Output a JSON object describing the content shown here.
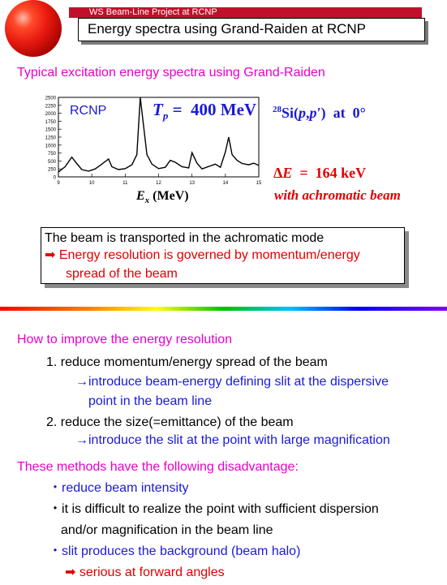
{
  "header": {
    "project_label": "WS Beam-Line Project at RCNP",
    "title": "Energy spectra using Grand-Raiden at RCNP"
  },
  "spectrum": {
    "heading": "Typical excitation energy spectra using Grand-Raiden",
    "lab_label": "RCNP",
    "beam_energy": "Tp = 400 MeV",
    "reaction": "28Si(p,p′) at 0°",
    "resolution": "ΔE = 164 keV",
    "beam_mode": "with achromatic beam",
    "x_axis_label": "Ex (MeV)",
    "y_ticks": [
      "2500",
      "2250",
      "2000",
      "1750",
      "1500",
      "1250",
      "1000",
      "750",
      "500",
      "250",
      "0"
    ],
    "x_ticks": [
      "9",
      "10",
      "11",
      "12",
      "13",
      "14",
      "15"
    ]
  },
  "statement": {
    "line1": "The beam is transported in the achromatic mode",
    "line2": "Energy resolution is governed by momentum/energy",
    "line3": "spread of the beam"
  },
  "improve": {
    "heading": "How to improve the energy resolution",
    "item1": "1. reduce momentum/energy spread of the beam",
    "item1_sub_a": "introduce beam-energy defining slit at the dispersive",
    "item1_sub_b": "point in the beam line",
    "item2": "2. reduce the size(=emittance) of the beam",
    "item2_sub": "introduce the slit at the point with large magnification"
  },
  "disadvantage": {
    "heading": "These methods have the following disadvantage:",
    "bullet1": "reduce beam intensity",
    "bullet2_a": "it is difficult to realize the point with sufficient dispersion",
    "bullet2_b": "and/or magnification in the beam line",
    "bullet3": "slit produces the background (beam halo)",
    "bullet3_sub": "serious at forward angles"
  },
  "colors": {
    "pink": "#e600cc",
    "blue": "#1a1ad6",
    "red": "#e00000",
    "header_bar": "#c0102b"
  }
}
